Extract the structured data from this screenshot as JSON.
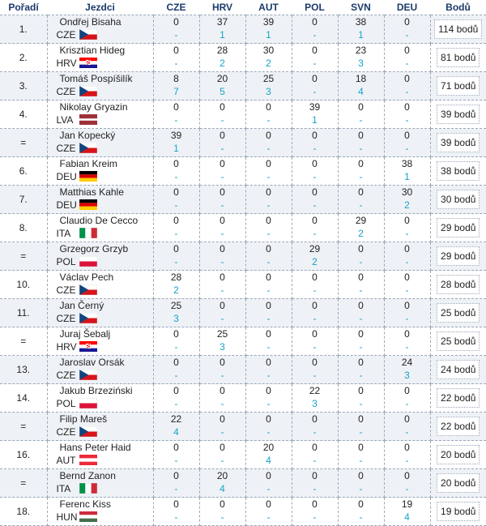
{
  "columns": [
    "Pořadí",
    "Jezdci",
    "CZE",
    "HRV",
    "AUT",
    "POL",
    "SVN",
    "DEU",
    "Bodů"
  ],
  "rows": [
    {
      "pos": "1.",
      "name": "Ondřej Bisaha",
      "nat": "CZE",
      "flag": "cze",
      "results": [
        {
          "pts": "0",
          "rank": "-"
        },
        {
          "pts": "37",
          "rank": "1"
        },
        {
          "pts": "39",
          "rank": "1"
        },
        {
          "pts": "0",
          "rank": "-"
        },
        {
          "pts": "38",
          "rank": "1"
        },
        {
          "pts": "0",
          "rank": "-"
        }
      ],
      "total": "114 bodů"
    },
    {
      "pos": "2.",
      "name": "Krisztian Hideg",
      "nat": "HRV",
      "flag": "hrv",
      "results": [
        {
          "pts": "0",
          "rank": "-"
        },
        {
          "pts": "28",
          "rank": "2"
        },
        {
          "pts": "30",
          "rank": "2"
        },
        {
          "pts": "0",
          "rank": "-"
        },
        {
          "pts": "23",
          "rank": "3"
        },
        {
          "pts": "0",
          "rank": "-"
        }
      ],
      "total": "81 bodů"
    },
    {
      "pos": "3.",
      "name": "Tomáš Pospíšilík",
      "nat": "CZE",
      "flag": "cze",
      "results": [
        {
          "pts": "8",
          "rank": "7"
        },
        {
          "pts": "20",
          "rank": "5"
        },
        {
          "pts": "25",
          "rank": "3"
        },
        {
          "pts": "0",
          "rank": "-"
        },
        {
          "pts": "18",
          "rank": "4"
        },
        {
          "pts": "0",
          "rank": "-"
        }
      ],
      "total": "71 bodů"
    },
    {
      "pos": "4.",
      "name": "Nikolay Gryazin",
      "nat": "LVA",
      "flag": "lva",
      "results": [
        {
          "pts": "0",
          "rank": "-"
        },
        {
          "pts": "0",
          "rank": "-"
        },
        {
          "pts": "0",
          "rank": "-"
        },
        {
          "pts": "39",
          "rank": "1"
        },
        {
          "pts": "0",
          "rank": "-"
        },
        {
          "pts": "0",
          "rank": "-"
        }
      ],
      "total": "39 bodů"
    },
    {
      "pos": "=",
      "name": "Jan Kopecký",
      "nat": "CZE",
      "flag": "cze",
      "results": [
        {
          "pts": "39",
          "rank": "1"
        },
        {
          "pts": "0",
          "rank": "-"
        },
        {
          "pts": "0",
          "rank": "-"
        },
        {
          "pts": "0",
          "rank": "-"
        },
        {
          "pts": "0",
          "rank": "-"
        },
        {
          "pts": "0",
          "rank": "-"
        }
      ],
      "total": "39 bodů"
    },
    {
      "pos": "6.",
      "name": "Fabian Kreim",
      "nat": "DEU",
      "flag": "deu",
      "results": [
        {
          "pts": "0",
          "rank": "-"
        },
        {
          "pts": "0",
          "rank": "-"
        },
        {
          "pts": "0",
          "rank": "-"
        },
        {
          "pts": "0",
          "rank": "-"
        },
        {
          "pts": "0",
          "rank": "-"
        },
        {
          "pts": "38",
          "rank": "1"
        }
      ],
      "total": "38 bodů"
    },
    {
      "pos": "7.",
      "name": "Matthias Kahle",
      "nat": "DEU",
      "flag": "deu",
      "results": [
        {
          "pts": "0",
          "rank": "-"
        },
        {
          "pts": "0",
          "rank": "-"
        },
        {
          "pts": "0",
          "rank": "-"
        },
        {
          "pts": "0",
          "rank": "-"
        },
        {
          "pts": "0",
          "rank": "-"
        },
        {
          "pts": "30",
          "rank": "2"
        }
      ],
      "total": "30 bodů"
    },
    {
      "pos": "8.",
      "name": "Claudio De Cecco",
      "nat": "ITA",
      "flag": "ita",
      "results": [
        {
          "pts": "0",
          "rank": "-"
        },
        {
          "pts": "0",
          "rank": "-"
        },
        {
          "pts": "0",
          "rank": "-"
        },
        {
          "pts": "0",
          "rank": "-"
        },
        {
          "pts": "29",
          "rank": "2"
        },
        {
          "pts": "0",
          "rank": "-"
        }
      ],
      "total": "29 bodů"
    },
    {
      "pos": "=",
      "name": "Grzegorz Grzyb",
      "nat": "POL",
      "flag": "pol",
      "results": [
        {
          "pts": "0",
          "rank": "-"
        },
        {
          "pts": "0",
          "rank": "-"
        },
        {
          "pts": "0",
          "rank": "-"
        },
        {
          "pts": "29",
          "rank": "2"
        },
        {
          "pts": "0",
          "rank": "-"
        },
        {
          "pts": "0",
          "rank": "-"
        }
      ],
      "total": "29 bodů"
    },
    {
      "pos": "10.",
      "name": "Václav Pech",
      "nat": "CZE",
      "flag": "cze",
      "results": [
        {
          "pts": "28",
          "rank": "2"
        },
        {
          "pts": "0",
          "rank": "-"
        },
        {
          "pts": "0",
          "rank": "-"
        },
        {
          "pts": "0",
          "rank": "-"
        },
        {
          "pts": "0",
          "rank": "-"
        },
        {
          "pts": "0",
          "rank": "-"
        }
      ],
      "total": "28 bodů"
    },
    {
      "pos": "11.",
      "name": "Jan Černý",
      "nat": "CZE",
      "flag": "cze",
      "results": [
        {
          "pts": "25",
          "rank": "3"
        },
        {
          "pts": "0",
          "rank": "-"
        },
        {
          "pts": "0",
          "rank": "-"
        },
        {
          "pts": "0",
          "rank": "-"
        },
        {
          "pts": "0",
          "rank": "-"
        },
        {
          "pts": "0",
          "rank": "-"
        }
      ],
      "total": "25 bodů"
    },
    {
      "pos": "=",
      "name": "Juraj Šebalj",
      "nat": "HRV",
      "flag": "hrv",
      "results": [
        {
          "pts": "0",
          "rank": "-"
        },
        {
          "pts": "25",
          "rank": "3"
        },
        {
          "pts": "0",
          "rank": "-"
        },
        {
          "pts": "0",
          "rank": "-"
        },
        {
          "pts": "0",
          "rank": "-"
        },
        {
          "pts": "0",
          "rank": "-"
        }
      ],
      "total": "25 bodů"
    },
    {
      "pos": "13.",
      "name": "Jaroslav Orsák",
      "nat": "CZE",
      "flag": "cze",
      "results": [
        {
          "pts": "0",
          "rank": "-"
        },
        {
          "pts": "0",
          "rank": "-"
        },
        {
          "pts": "0",
          "rank": "-"
        },
        {
          "pts": "0",
          "rank": "-"
        },
        {
          "pts": "0",
          "rank": "-"
        },
        {
          "pts": "24",
          "rank": "3"
        }
      ],
      "total": "24 bodů"
    },
    {
      "pos": "14.",
      "name": "Jakub Brzeziński",
      "nat": "POL",
      "flag": "pol",
      "results": [
        {
          "pts": "0",
          "rank": "-"
        },
        {
          "pts": "0",
          "rank": "-"
        },
        {
          "pts": "0",
          "rank": "-"
        },
        {
          "pts": "22",
          "rank": "3"
        },
        {
          "pts": "0",
          "rank": "-"
        },
        {
          "pts": "0",
          "rank": "-"
        }
      ],
      "total": "22 bodů"
    },
    {
      "pos": "=",
      "name": "Filip Mareš",
      "nat": "CZE",
      "flag": "cze",
      "results": [
        {
          "pts": "22",
          "rank": "4"
        },
        {
          "pts": "0",
          "rank": "-"
        },
        {
          "pts": "0",
          "rank": "-"
        },
        {
          "pts": "0",
          "rank": "-"
        },
        {
          "pts": "0",
          "rank": "-"
        },
        {
          "pts": "0",
          "rank": "-"
        }
      ],
      "total": "22 bodů"
    },
    {
      "pos": "16.",
      "name": "Hans Peter Haid",
      "nat": "AUT",
      "flag": "aut",
      "results": [
        {
          "pts": "0",
          "rank": "-"
        },
        {
          "pts": "0",
          "rank": "-"
        },
        {
          "pts": "20",
          "rank": "4"
        },
        {
          "pts": "0",
          "rank": "-"
        },
        {
          "pts": "0",
          "rank": "-"
        },
        {
          "pts": "0",
          "rank": "-"
        }
      ],
      "total": "20 bodů"
    },
    {
      "pos": "=",
      "name": "Bernd Zanon",
      "nat": "ITA",
      "flag": "ita",
      "results": [
        {
          "pts": "0",
          "rank": "-"
        },
        {
          "pts": "20",
          "rank": "4"
        },
        {
          "pts": "0",
          "rank": "-"
        },
        {
          "pts": "0",
          "rank": "-"
        },
        {
          "pts": "0",
          "rank": "-"
        },
        {
          "pts": "0",
          "rank": "-"
        }
      ],
      "total": "20 bodů"
    },
    {
      "pos": "18.",
      "name": "Ferenc Kiss",
      "nat": "HUN",
      "flag": "hun",
      "results": [
        {
          "pts": "0",
          "rank": "-"
        },
        {
          "pts": "0",
          "rank": "-"
        },
        {
          "pts": "0",
          "rank": "-"
        },
        {
          "pts": "0",
          "rank": "-"
        },
        {
          "pts": "0",
          "rank": "-"
        },
        {
          "pts": "19",
          "rank": "4"
        }
      ],
      "total": "19 bodů"
    }
  ],
  "colors": {
    "header_text": "#1a3a6b",
    "rank_text": "#17a2c9",
    "row_stripe": "#eef2f6",
    "divider": "#9aa7b8"
  }
}
